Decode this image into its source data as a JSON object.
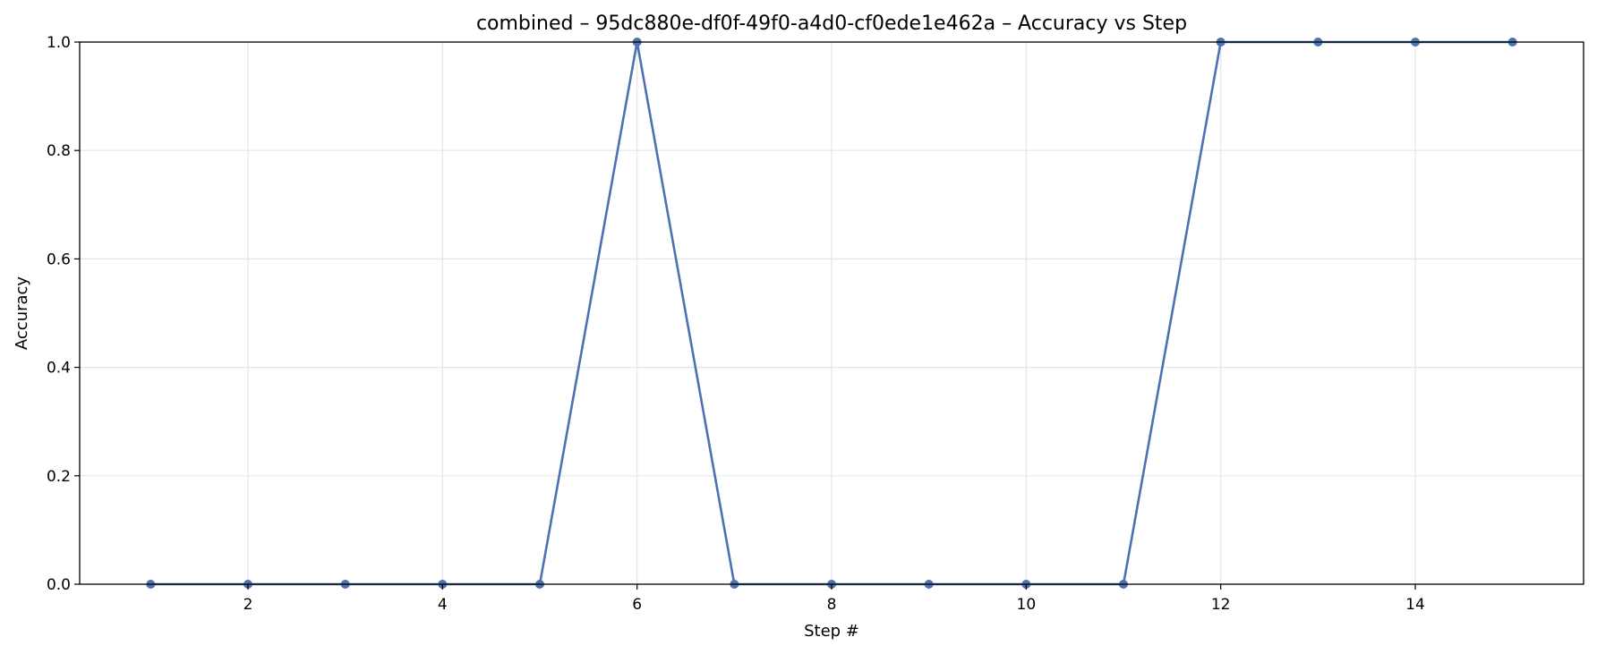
{
  "chart_data": {
    "type": "line",
    "title": "combined – 95dc880e-df0f-49f0-a4d0-cf0ede1e462a – Accuracy vs Step",
    "xlabel": "Step #",
    "ylabel": "Accuracy",
    "xlim": [
      0.27,
      15.73
    ],
    "ylim": [
      0.0,
      1.0
    ],
    "xticks": [
      2,
      4,
      6,
      8,
      10,
      12,
      14
    ],
    "yticks": [
      0.0,
      0.2,
      0.4,
      0.6,
      0.8,
      1.0
    ],
    "grid": true,
    "legend": "none",
    "series": [
      {
        "name": "Accuracy",
        "color": "#4c72b0",
        "x": [
          1,
          2,
          3,
          4,
          5,
          6,
          7,
          8,
          9,
          10,
          11,
          12,
          13,
          14,
          15
        ],
        "y": [
          0,
          0,
          0,
          0,
          0,
          1,
          0,
          0,
          0,
          0,
          0,
          1,
          1,
          1,
          1
        ]
      }
    ]
  }
}
